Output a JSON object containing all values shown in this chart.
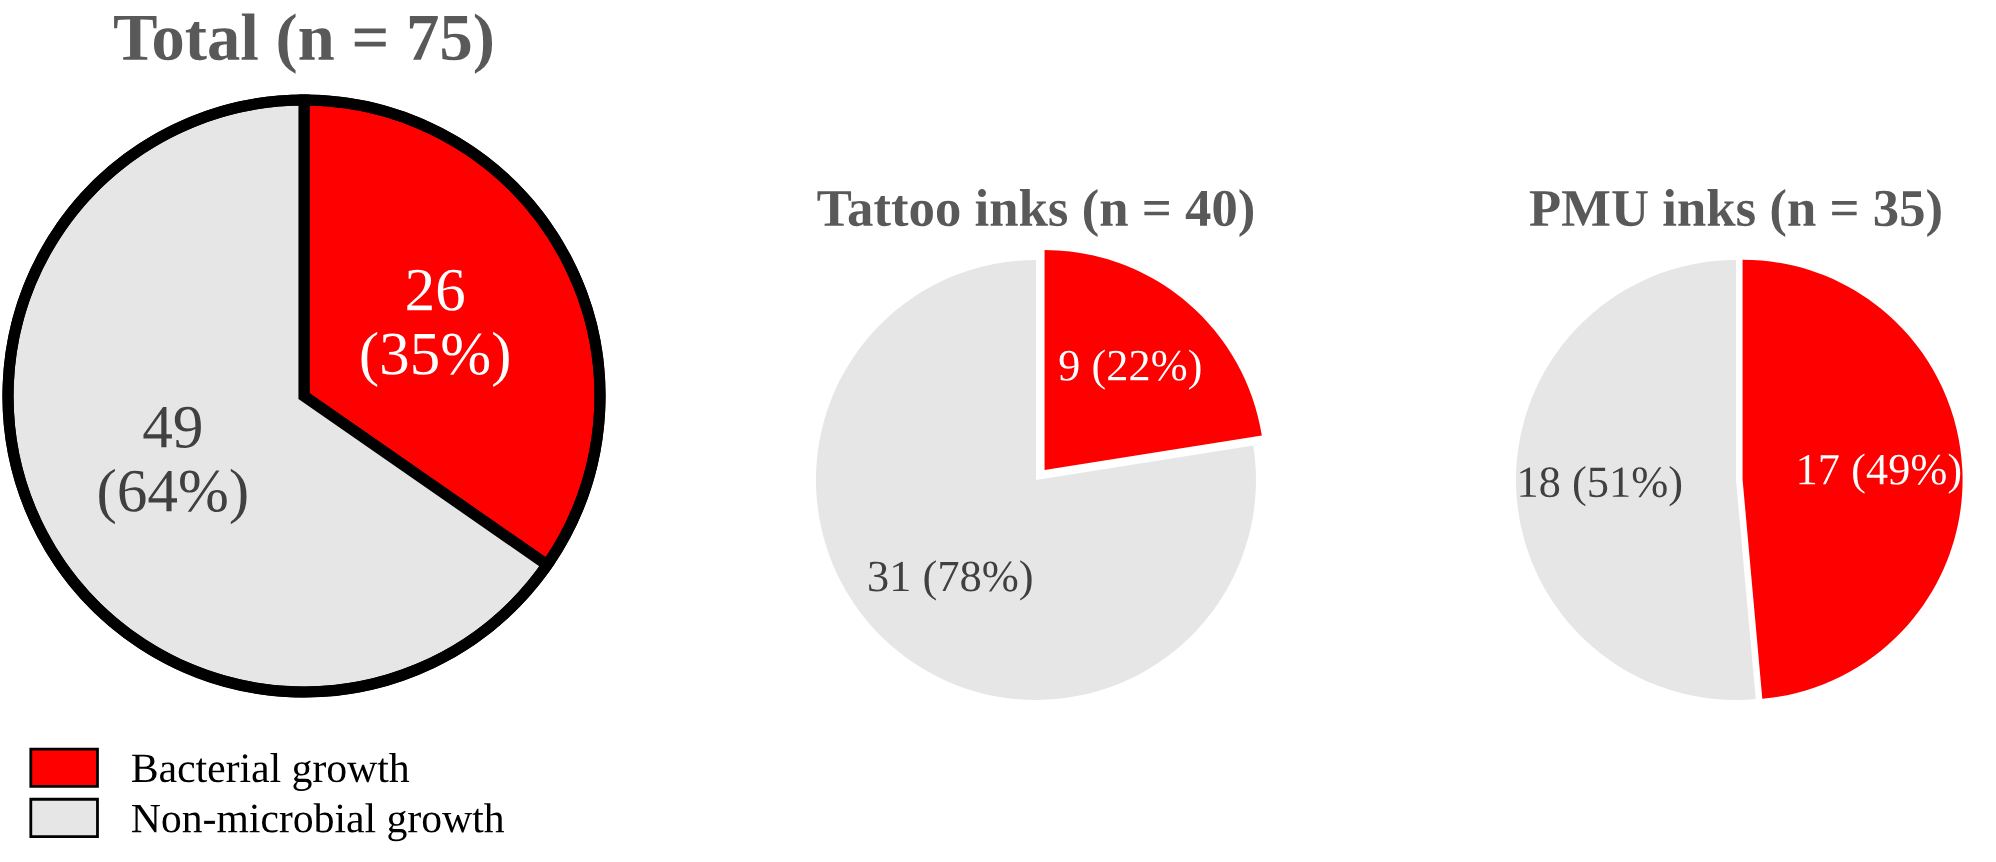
{
  "chart_data": [
    {
      "type": "pie",
      "title": "Total (n = 75)",
      "categories": [
        "Bacterial growth",
        "Non-microbial growth"
      ],
      "values": [
        26,
        49
      ],
      "value_labels": [
        "26\n(35%)",
        "49\n(64%)"
      ],
      "colors": [
        "#ff0000",
        "#e6e6e6"
      ],
      "legend": "bottom left"
    },
    {
      "type": "pie",
      "title": "Tattoo inks (n = 40)",
      "categories": [
        null,
        null
      ],
      "values": [
        9,
        31
      ],
      "value_labels": [
        "9 (22%)",
        "31 (78%)"
      ],
      "colors": [
        "#ff0000",
        "#e6e6e6"
      ]
    },
    {
      "type": "pie",
      "title": "PMU inks (n = 35)",
      "categories": [
        null,
        null
      ],
      "values": [
        17,
        18
      ],
      "value_labels": [
        "17 (49%)",
        "18 (51%)"
      ],
      "colors": [
        "#ff0000",
        "#e6e6e6"
      ]
    }
  ]
}
